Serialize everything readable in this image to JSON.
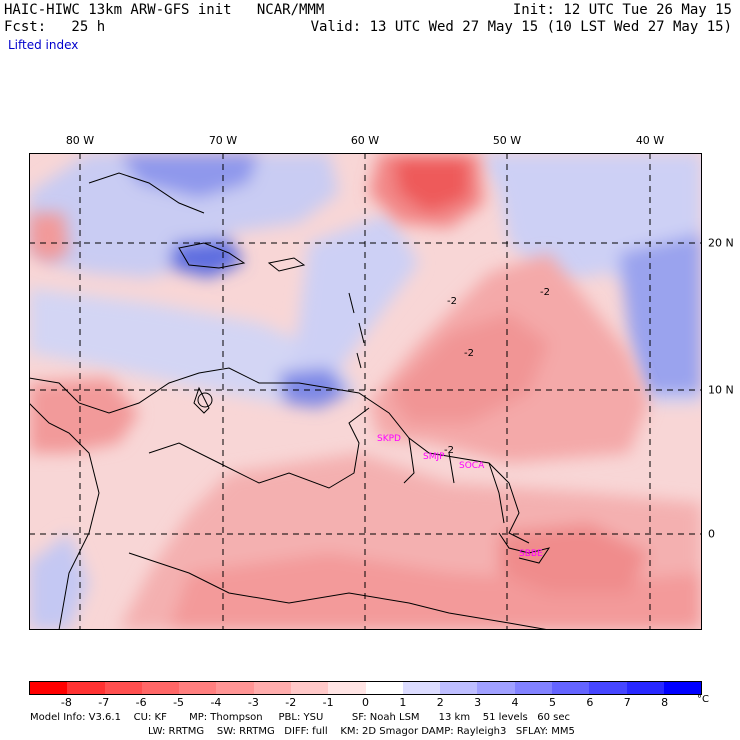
{
  "header": {
    "title": "HAIC-HIWC 13km ARW-GFS init   NCAR/MMM",
    "fcst": "Fcst:   25 h",
    "init": "Init: 12 UTC Tue 26 May 15",
    "valid": "Valid: 13 UTC Wed 27 May 15 (10 LST Wed 27 May 15)",
    "field": "Lifted index"
  },
  "map": {
    "lon_labels": [
      "80 W",
      "70 W",
      "60 W",
      "50 W",
      "40 W"
    ],
    "lat_labels": [
      "20 N",
      "10 N",
      "0"
    ],
    "contour_labels": [
      "-2",
      "-2",
      "-2",
      "-2"
    ],
    "station_labels": [
      "SKPD",
      "SMJP",
      "SOCA",
      "SBBE"
    ],
    "colors": {
      "land_line": "#000000",
      "grid_line": "#000000",
      "station": "#ff00ff",
      "background": "#f7d3d3"
    }
  },
  "colorbar": {
    "ticks": [
      "-8",
      "-7",
      "-6",
      "-5",
      "-4",
      "-3",
      "-2",
      "-1",
      "0",
      "1",
      "2",
      "3",
      "4",
      "5",
      "6",
      "7",
      "8"
    ],
    "unit": "°C",
    "colors": [
      "#ff0000",
      "#ff3232",
      "#ff4f4f",
      "#ff6767",
      "#ff7f7f",
      "#ff9595",
      "#ffadad",
      "#ffc8c8",
      "#ffe4e4",
      "#ffffff",
      "#dcdcff",
      "#bebeff",
      "#a0a0ff",
      "#8282ff",
      "#6464ff",
      "#4646ff",
      "#2828ff",
      "#0000ff"
    ]
  },
  "footer": {
    "line1": "Model Info: V3.6.1    CU: KF       MP: Thompson     PBL: YSU         SF: Noah LSM      13 km    51 levels   60 sec",
    "line2": "LW: RRTMG    SW: RRTMG   DIFF: full    KM: 2D Smagor DAMP: Rayleigh3   SFLAY: MM5"
  }
}
